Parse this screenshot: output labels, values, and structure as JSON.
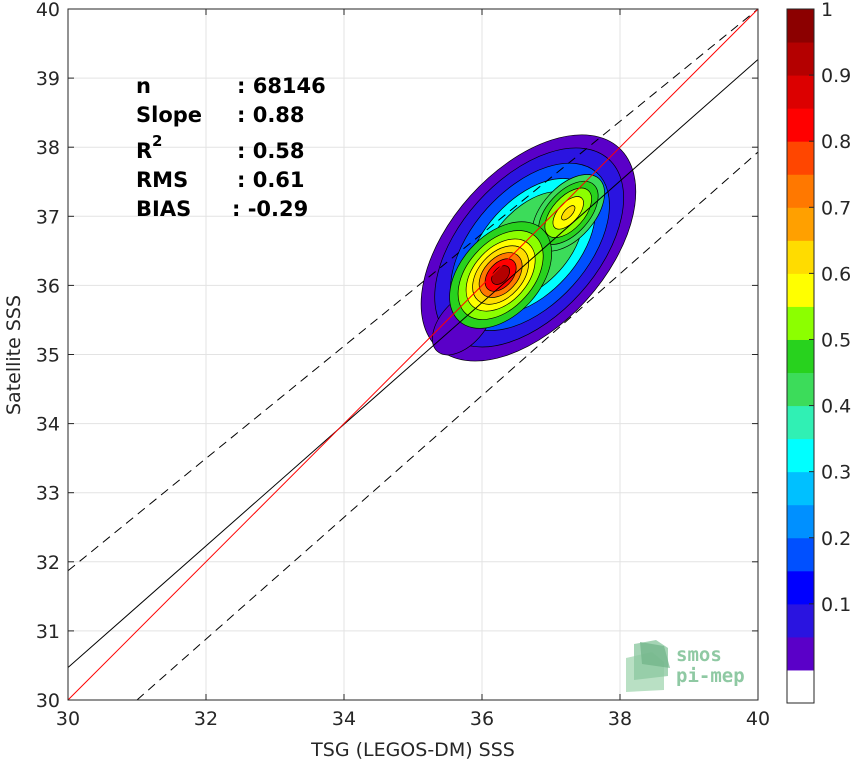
{
  "chart_data": {
    "type": "heatmap",
    "xlabel": "TSG (LEGOS-DM) SSS",
    "ylabel": "Satellite SSS",
    "xlim": [
      30,
      40
    ],
    "ylim": [
      30,
      40
    ],
    "x_ticks": [
      30,
      32,
      34,
      36,
      38,
      40
    ],
    "y_ticks": [
      30,
      31,
      32,
      33,
      34,
      35,
      36,
      37,
      38,
      39,
      40
    ],
    "grid": true,
    "stats": [
      {
        "label": "n",
        "value": ": 68146"
      },
      {
        "label": "Slope",
        "value": ": 0.88"
      },
      {
        "label": "R",
        "sup": "2",
        "value": ": 0.58"
      },
      {
        "label": "RMS",
        "value": ": 0.61"
      },
      {
        "label": "BIAS",
        "value": ": -0.29"
      }
    ],
    "lines": {
      "identity": {
        "x": [
          30,
          40
        ],
        "y": [
          30,
          40
        ],
        "color": "#ff0000"
      },
      "fit": {
        "x": [
          30,
          40
        ],
        "y": [
          30.47,
          39.27
        ],
        "color": "#000000"
      },
      "upper_bound": {
        "x": [
          30,
          40
        ],
        "y": [
          31.87,
          40.0
        ],
        "style": "dashed",
        "color": "#000000"
      },
      "lower_bound": {
        "x": [
          31,
          40
        ],
        "y": [
          30.0,
          37.93
        ],
        "style": "dashed",
        "color": "#000000"
      }
    },
    "density_peaks": [
      {
        "x": 36.27,
        "y": 36.15,
        "value": 1.0
      },
      {
        "x": 37.25,
        "y": 37.05,
        "value": 0.68
      }
    ],
    "colorbar": {
      "range": [
        0,
        1
      ],
      "ticks": [
        "0.1",
        "0.2",
        "0.3",
        "0.4",
        "0.5",
        "0.6",
        "0.7",
        "0.8",
        "0.9",
        "1"
      ],
      "colors": [
        "#ffffff",
        "#5a00c8",
        "#2a14e0",
        "#0000ff",
        "#0050ff",
        "#0090ff",
        "#00c0ff",
        "#00ffff",
        "#30f0b4",
        "#3cdc5a",
        "#28d21e",
        "#8cff00",
        "#ffff00",
        "#ffdc00",
        "#ffa000",
        "#ff7800",
        "#ff4600",
        "#ff0000",
        "#dc0000",
        "#b40000",
        "#8c0000"
      ]
    }
  },
  "logo": {
    "line1": "smos",
    "line2": "pi-mep"
  }
}
